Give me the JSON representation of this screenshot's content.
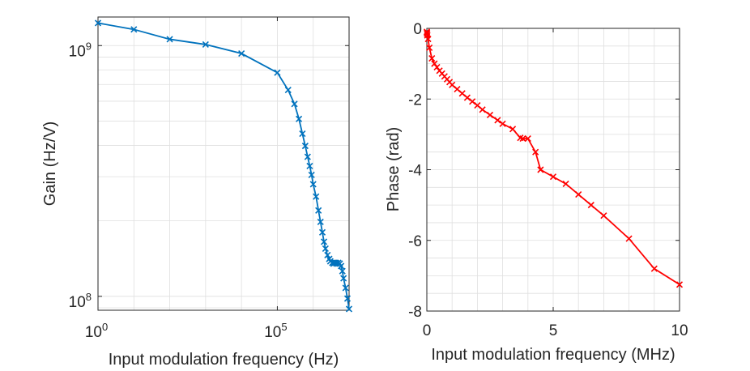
{
  "chart_data": [
    {
      "type": "line",
      "title": "",
      "xlabel": "Input modulation frequency (Hz)",
      "ylabel": "Gain (Hz/V)",
      "xscale": "log",
      "yscale": "log",
      "xlim": [
        1,
        10000000.0
      ],
      "ylim": [
        88000000.0,
        1300000000.0
      ],
      "grid": true,
      "color": "#0072BD",
      "x_ticks": [
        {
          "base": "10",
          "exp": "0"
        },
        {
          "base": "10",
          "exp": "5"
        }
      ],
      "y_ticks": [
        {
          "base": "10",
          "exp": "9"
        },
        {
          "base": "10",
          "exp": "8"
        }
      ],
      "series": [
        {
          "name": "Gain",
          "marker": "x",
          "x": [
            1,
            10,
            100,
            1000,
            10000,
            100000,
            200000,
            300000,
            400000,
            500000,
            600000,
            700000,
            800000,
            900000,
            1000000,
            1200000,
            1400000,
            1600000,
            1800000,
            2000000,
            2200000,
            2500000,
            2800000,
            3000000,
            3400000,
            3700000,
            3800000,
            4000000,
            4300000,
            4500000,
            5000000,
            5500000,
            6000000,
            6500000,
            7000000,
            8000000,
            9000000,
            10000000
          ],
          "y": [
            1230000000.0,
            1160000000.0,
            1060000000.0,
            1010000000.0,
            930000000.0,
            780000000.0,
            665000000.0,
            585000000.0,
            510000000.0,
            445000000.0,
            398000000.0,
            360000000.0,
            331000000.0,
            305000000.0,
            280000000.0,
            250000000.0,
            220000000.0,
            198000000.0,
            180000000.0,
            165000000.0,
            155000000.0,
            146000000.0,
            141000000.0,
            138000000.0,
            136000000.0,
            135000000.0,
            136000000.0,
            136000000.0,
            136000000.0,
            135000000.0,
            136000000.0,
            135000000.0,
            132000000.0,
            126000000.0,
            118000000.0,
            108000000.0,
            98000000.0,
            89000000.0
          ]
        }
      ]
    },
    {
      "type": "line",
      "title": "",
      "xlabel": "Input modulation frequency (MHz)",
      "ylabel": "Phase (rad)",
      "xlim": [
        0,
        10
      ],
      "ylim": [
        -8,
        0
      ],
      "grid": true,
      "color": "#FF0000",
      "x_ticks": [
        "0",
        "5",
        "10"
      ],
      "y_ticks": [
        "0",
        "-2",
        "-4",
        "-6",
        "-8"
      ],
      "series": [
        {
          "name": "Phase",
          "marker": "x",
          "x": [
            0,
            0.005,
            0.01,
            0.02,
            0.05,
            0.1,
            0.2,
            0.3,
            0.4,
            0.5,
            0.6,
            0.7,
            0.8,
            0.9,
            1.0,
            1.2,
            1.4,
            1.6,
            1.8,
            2.0,
            2.2,
            2.5,
            2.8,
            3.0,
            3.4,
            3.7,
            3.8,
            4.0,
            4.3,
            4.5,
            5.0,
            5.5,
            6.0,
            6.5,
            7.0,
            8.0,
            9.0,
            10.0
          ],
          "y": [
            -0.1,
            -0.12,
            -0.15,
            -0.2,
            -0.3,
            -0.55,
            -0.85,
            -1.0,
            -1.1,
            -1.2,
            -1.28,
            -1.36,
            -1.44,
            -1.52,
            -1.6,
            -1.72,
            -1.84,
            -1.96,
            -2.07,
            -2.18,
            -2.3,
            -2.45,
            -2.6,
            -2.7,
            -2.85,
            -3.1,
            -3.12,
            -3.12,
            -3.5,
            -4.0,
            -4.2,
            -4.4,
            -4.7,
            -5.0,
            -5.3,
            -5.95,
            -6.8,
            -7.25
          ]
        }
      ]
    }
  ]
}
